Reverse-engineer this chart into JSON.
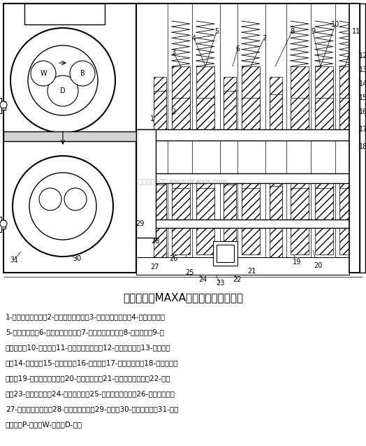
{
  "title": "本田轿车的MAXA型自动变速器示意图",
  "title_fontsize": 11,
  "background_color": "#ffffff",
  "text_color": "#000000",
  "description_lines": [
    "1-第二轴一档齿轮；2-第二轴三档齿轮；3-第一轴三档齿轮；4-三档离合器；",
    "5-四档离合器；6-第一轴四档齿轮；7-第一轴倒档齿轮；8-倒档惰轮；9-第",
    "一轴惰轮；10-第一轴；11-第二轴二档齿轮；12-第二轴惰轮；13-驻车档齿",
    "轮；14-第二轴；15-驻车锁销；16-中间轴；17-中间轴惰轮；18-中间轴二档",
    "齿轮；19-第二轴倒档齿轮；20-倒档啮合套；21-第二轴四档齿轮；22-伺服",
    "阀；23-二档离合器；24-一档离合器；25-中间轴一档齿轮；26-单向离合器；",
    "27-一档固定离合器；28-主减速齿轮副；29-油泵；30-液力变矩器；31-锁止",
    "离合器；P-泵轮；W-涡轮；D-导轮"
  ],
  "desc_fontsize": 7.5,
  "fig_width": 5.24,
  "fig_height": 6.38,
  "dpi": 100,
  "watermark": "汽车维修技术网 www.qcwxjs.com"
}
